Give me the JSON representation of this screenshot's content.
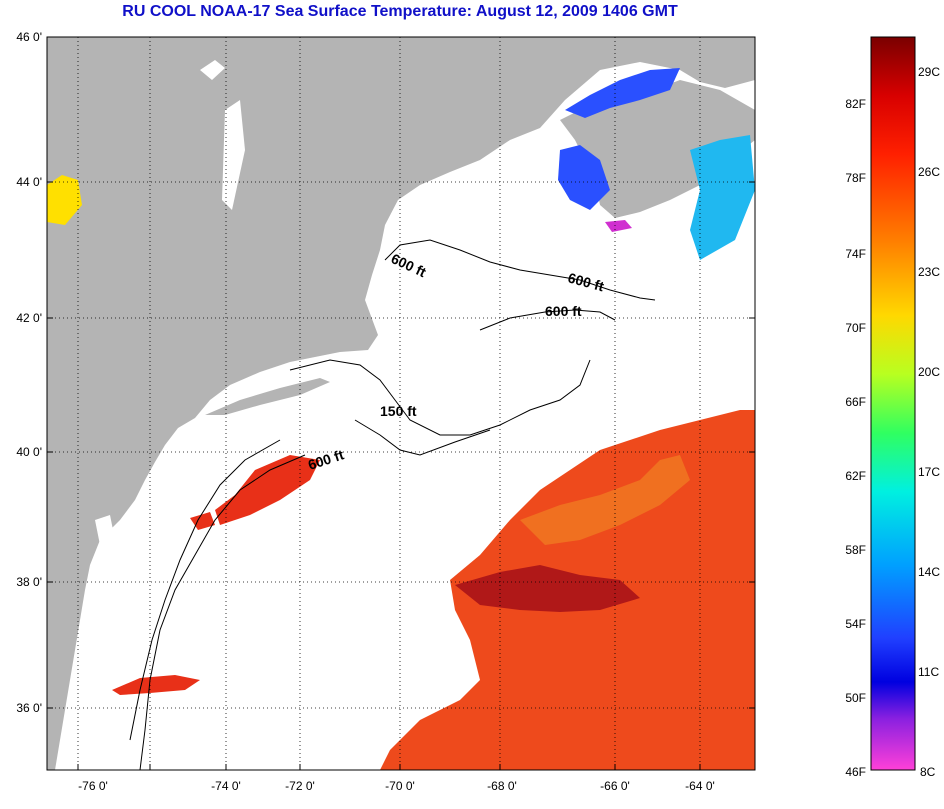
{
  "title": "RU COOL  NOAA-17  Sea Surface Temperature:  August 12, 2009 1406 GMT",
  "lat_labels": [
    "46 0'",
    "44 0'",
    "42 0'",
    "40 0'",
    "38 0'",
    "36 0'"
  ],
  "lon_labels": [
    "-76 0'",
    "-74 0'",
    "-72 0'",
    "-70 0'",
    "-68 0'",
    "-66 0'",
    "-64 0'"
  ],
  "contour_labels": [
    "600 ft",
    "600 ft",
    "600 ft",
    "150 ft",
    "600 ft"
  ],
  "colorbar": {
    "fahrenheit_labels": [
      "82F",
      "78F",
      "74F",
      "70F",
      "66F",
      "62F",
      "58F",
      "54F",
      "50F",
      "46F"
    ],
    "celsius_labels": [
      "29C",
      "26C",
      "23C",
      "20C",
      "17C",
      "14C",
      "11C",
      "8C"
    ]
  },
  "colors": {
    "title": "#1010c8",
    "land": "#b4b4b4",
    "ocean_nodata": "#ffffff",
    "sst_warm": "#e82a10",
    "sst_hot": "#a01010",
    "sst_cool": "#2a50ff"
  }
}
